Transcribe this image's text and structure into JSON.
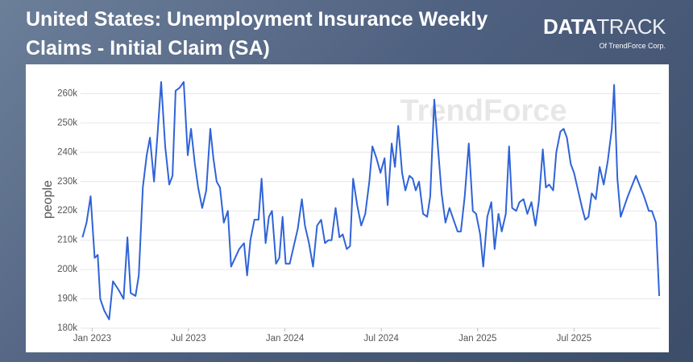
{
  "branding": {
    "logo_bold": "DATA",
    "logo_light": "TRACK",
    "tagline": "Of TrendForce Corp.",
    "watermark": "TrendForce"
  },
  "chart_data": {
    "type": "line",
    "title": "United States: Unemployment Insurance Weekly Claims - Initial Claim (SA)",
    "y_label": "people",
    "color": "#2f63d8",
    "grid": true,
    "xlim": [
      2022.94,
      2025.95
    ],
    "xticks": [
      {
        "value": 2023,
        "label": "Jan 2023"
      },
      {
        "value": 2023.5,
        "label": "Jul 2023"
      },
      {
        "value": 2024,
        "label": "Jan 2024"
      },
      {
        "value": 2024.5,
        "label": "Jul 2024"
      },
      {
        "value": 2025,
        "label": "Jan 2025"
      },
      {
        "value": 2025.5,
        "label": "Jul 2025"
      }
    ],
    "ylim": [
      180000,
      264500
    ],
    "yticks": [
      {
        "value": 180000,
        "label": "180k"
      },
      {
        "value": 190000,
        "label": "190k"
      },
      {
        "value": 200000,
        "label": "200k"
      },
      {
        "value": 210000,
        "label": "210k"
      },
      {
        "value": 220000,
        "label": "220k"
      },
      {
        "value": 230000,
        "label": "230k"
      },
      {
        "value": 240000,
        "label": "240k"
      },
      {
        "value": 250000,
        "label": "250k"
      },
      {
        "value": 260000,
        "label": "260k"
      }
    ],
    "x": [
      2022.95,
      2022.971,
      2022.992,
      2023.013,
      2023.029,
      2023.042,
      2023.063,
      2023.088,
      2023.108,
      2023.138,
      2023.163,
      2023.183,
      2023.2,
      2023.225,
      2023.242,
      2023.263,
      2023.283,
      2023.3,
      2023.321,
      2023.338,
      2023.358,
      2023.379,
      2023.4,
      2023.417,
      2023.433,
      2023.454,
      2023.475,
      2023.496,
      2023.513,
      2023.533,
      2023.55,
      2023.571,
      2023.592,
      2023.613,
      2023.629,
      2023.646,
      2023.663,
      2023.683,
      2023.704,
      2023.721,
      2023.742,
      2023.763,
      2023.788,
      2023.804,
      2023.821,
      2023.842,
      2023.863,
      2023.879,
      2023.9,
      2023.917,
      2023.933,
      2023.954,
      2023.971,
      2023.988,
      2024.004,
      2024.025,
      2024.046,
      2024.067,
      2024.088,
      2024.104,
      2024.125,
      2024.146,
      2024.167,
      2024.188,
      2024.208,
      2024.225,
      2024.242,
      2024.263,
      2024.283,
      2024.3,
      2024.321,
      2024.338,
      2024.354,
      2024.375,
      2024.396,
      2024.417,
      2024.438,
      2024.454,
      2024.475,
      2024.496,
      2024.517,
      2024.533,
      2024.554,
      2024.571,
      2024.588,
      2024.608,
      2024.625,
      2024.646,
      2024.663,
      2024.679,
      2024.696,
      2024.717,
      2024.738,
      2024.754,
      2024.775,
      2024.796,
      2024.813,
      2024.833,
      2024.854,
      2024.875,
      2024.896,
      2024.913,
      2024.933,
      2024.954,
      2024.975,
      2024.992,
      2025.013,
      2025.029,
      2025.05,
      2025.071,
      2025.088,
      2025.108,
      2025.125,
      2025.146,
      2025.163,
      2025.179,
      2025.2,
      2025.217,
      2025.238,
      2025.258,
      2025.279,
      2025.3,
      2025.317,
      2025.338,
      2025.354,
      2025.371,
      2025.392,
      2025.408,
      2025.429,
      2025.446,
      2025.463,
      2025.483,
      2025.5,
      2025.521,
      2025.542,
      2025.558,
      2025.575,
      2025.592,
      2025.613,
      2025.633,
      2025.654,
      2025.675,
      2025.696,
      2025.708,
      2025.725,
      2025.742,
      2025.758,
      2025.779,
      2025.821,
      2025.863,
      2025.888,
      2025.904,
      2025.925,
      2025.942
    ],
    "values": [
      211000,
      216000,
      225000,
      204000,
      205000,
      190000,
      186000,
      183000,
      196000,
      193000,
      190000,
      211000,
      192000,
      191000,
      198000,
      228000,
      239000,
      245000,
      230000,
      245000,
      264000,
      242000,
      229000,
      232000,
      261000,
      262000,
      264000,
      239000,
      248000,
      236000,
      228000,
      221000,
      227000,
      248000,
      238000,
      230000,
      228000,
      216000,
      220000,
      201000,
      204000,
      207000,
      209000,
      198000,
      210000,
      217000,
      217000,
      231000,
      209000,
      218000,
      220000,
      202000,
      204000,
      218000,
      202000,
      202000,
      208000,
      214000,
      224000,
      215000,
      209000,
      201000,
      215000,
      217000,
      209000,
      210000,
      210000,
      221000,
      211000,
      212000,
      207000,
      208000,
      231000,
      222000,
      215000,
      219000,
      230000,
      242000,
      238000,
      233000,
      238000,
      222000,
      243000,
      235000,
      249000,
      233000,
      227000,
      232000,
      231000,
      227000,
      230000,
      219000,
      218000,
      225000,
      258000,
      240000,
      226000,
      216000,
      221000,
      217000,
      213000,
      213000,
      225000,
      243000,
      220000,
      219000,
      212000,
      201000,
      218000,
      223000,
      207000,
      219000,
      213000,
      219000,
      242000,
      221000,
      220000,
      223000,
      224000,
      219000,
      223000,
      215000,
      223000,
      241000,
      228000,
      229000,
      227000,
      240000,
      247000,
      248000,
      245000,
      236000,
      233000,
      227000,
      221000,
      217000,
      218000,
      226000,
      224000,
      235000,
      229000,
      237000,
      248000,
      263000,
      231000,
      218000,
      221000,
      225000,
      232000,
      225000,
      220000,
      220000,
      216000,
      191000
    ]
  }
}
